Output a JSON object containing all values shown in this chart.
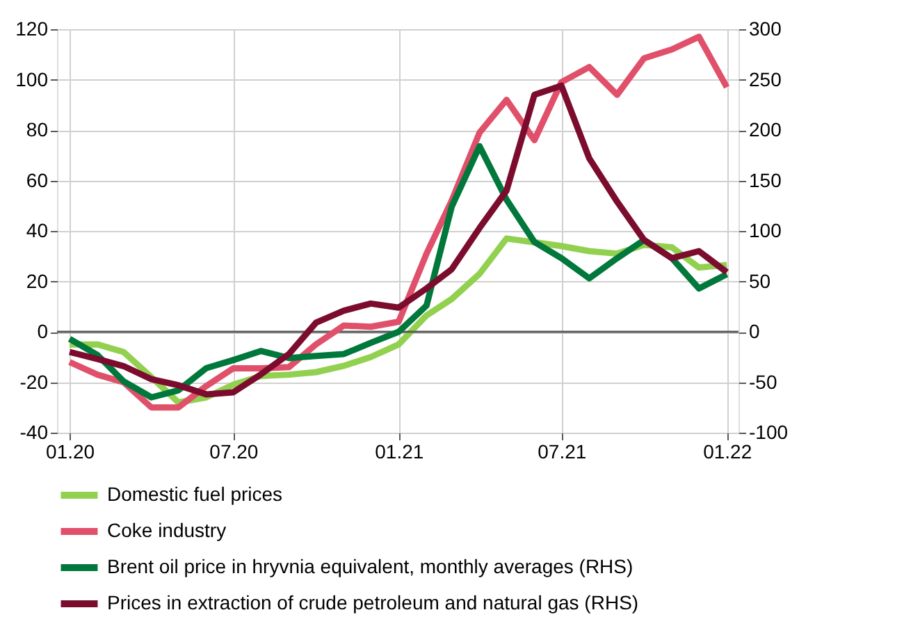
{
  "chart_data": {
    "type": "line",
    "x": [
      "2020-01",
      "2020-02",
      "2020-03",
      "2020-04",
      "2020-05",
      "2020-06",
      "2020-07",
      "2020-08",
      "2020-09",
      "2020-10",
      "2020-11",
      "2020-12",
      "2021-01",
      "2021-02",
      "2021-03",
      "2021-04",
      "2021-05",
      "2021-06",
      "2021-07",
      "2021-08",
      "2021-09",
      "2021-10",
      "2021-11",
      "2021-12",
      "2022-01"
    ],
    "xlim": [
      "2019-12-18",
      "2022-01-14"
    ],
    "xticks": [
      {
        "value": "2020-01",
        "label": "01.20"
      },
      {
        "value": "2020-07",
        "label": "07.20"
      },
      {
        "value": "2021-01",
        "label": "01.21"
      },
      {
        "value": "2021-07",
        "label": "07.21"
      },
      {
        "value": "2022-01",
        "label": "01.22"
      }
    ],
    "ylim": [
      -40,
      120
    ],
    "yticks": [
      -40,
      -20,
      0,
      20,
      40,
      60,
      80,
      100,
      120
    ],
    "y2lim": [
      -100,
      300
    ],
    "y2ticks": [
      -100,
      -50,
      0,
      50,
      100,
      150,
      200,
      250,
      300
    ],
    "series": [
      {
        "name": "Domestic fuel prices",
        "color": "#92d050",
        "values": [
          -5,
          -5,
          -8,
          -18,
          -28,
          -26,
          -21,
          -17.5,
          -17,
          -16,
          -13.5,
          -10,
          -5,
          6.5,
          13,
          23,
          37,
          35.5,
          34,
          32,
          31,
          34.5,
          33.5,
          25.5,
          26.5
        ]
      },
      {
        "name": "Coke industry",
        "color": "#e0506a",
        "values": [
          -12,
          -17,
          -20,
          -30,
          -30,
          -21.5,
          -14.5,
          -14.5,
          -14,
          -5,
          2.5,
          2,
          4,
          31,
          52,
          79,
          92,
          76,
          99,
          105,
          94,
          108.5,
          112,
          117,
          97
        ]
      },
      {
        "name": "Brent oil price in hryvnia equivalent, monthly averages (RHS)",
        "color": "#00783c",
        "axis": "y2",
        "values": [
          -7,
          -23,
          -49,
          -65,
          -58,
          -36,
          -28,
          -19,
          -26,
          -24,
          -22,
          -11,
          0,
          26,
          124,
          184,
          131,
          89,
          73,
          53,
          73,
          91,
          73,
          43,
          57
        ]
      },
      {
        "name": "Prices in extraction of crude petroleum and natural gas (RHS)",
        "color": "#7b0c2e",
        "axis": "y2",
        "values": [
          -20,
          -27,
          -34,
          -47,
          -53,
          -62,
          -60,
          -42,
          -22,
          9,
          21,
          28,
          24,
          43,
          62,
          103,
          140,
          235,
          244,
          172,
          129,
          91,
          73,
          80,
          59
        ]
      }
    ],
    "ref_lines": [
      {
        "axis": "y",
        "value": 0,
        "color": "#595959"
      }
    ],
    "grid": true,
    "legend": "bottom",
    "line_style": "solid"
  }
}
